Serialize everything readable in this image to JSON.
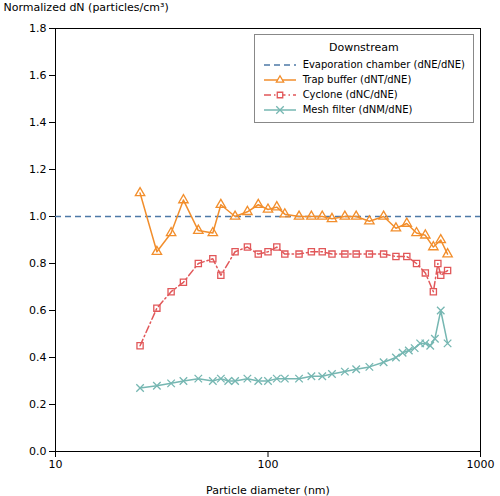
{
  "chart_data": {
    "type": "line",
    "xlabel": "Particle diameter (nm)",
    "ylabel": "Normalized dN (particles/cm³)",
    "log": "x",
    "xlim": [
      10,
      1000
    ],
    "xticks": [
      10,
      100,
      1000
    ],
    "ylim": [
      0.0,
      1.8
    ],
    "yticks": [
      {
        "value": 0.0,
        "label": "0.0"
      },
      0.2,
      0.4,
      0.6,
      0.8,
      {
        "value": 1.0,
        "label": "1.0"
      },
      1.2,
      1.4,
      1.6,
      1.8
    ],
    "grid": false,
    "legend": "upper right",
    "legend_title": "Downstream",
    "series": [
      {
        "name": "Evaporation chamber (dNE/dNE)",
        "type": "hline",
        "line_style": "dashed",
        "values": [
          1.0
        ]
      },
      {
        "name": "Trap buffer (dNT/dNE)",
        "type": "line",
        "line_style": "solid",
        "marker": "triangle",
        "x": [
          25,
          30,
          35,
          40,
          47,
          55,
          60,
          70,
          80,
          90,
          100,
          110,
          120,
          140,
          160,
          180,
          200,
          230,
          260,
          300,
          350,
          400,
          450,
          500,
          550,
          600,
          650,
          700
        ],
        "values": [
          1.1,
          0.85,
          0.93,
          1.07,
          0.94,
          0.93,
          1.05,
          1.0,
          1.02,
          1.05,
          1.03,
          1.04,
          1.01,
          1.0,
          1.0,
          1.0,
          0.99,
          1.0,
          1.0,
          0.98,
          1.0,
          0.95,
          0.97,
          0.93,
          0.92,
          0.87,
          0.9,
          0.84
        ]
      },
      {
        "name": "Cyclone (dNC/dNE)",
        "type": "line",
        "line_style": "dashdot",
        "marker": "square",
        "x": [
          25,
          30,
          35,
          40,
          47,
          55,
          60,
          70,
          80,
          90,
          100,
          110,
          120,
          140,
          160,
          180,
          200,
          230,
          260,
          300,
          350,
          400,
          450,
          500,
          550,
          600,
          630,
          650,
          700
        ],
        "values": [
          0.45,
          0.61,
          0.68,
          0.72,
          0.8,
          0.82,
          0.75,
          0.85,
          0.87,
          0.84,
          0.85,
          0.87,
          0.84,
          0.84,
          0.85,
          0.85,
          0.84,
          0.84,
          0.84,
          0.84,
          0.84,
          0.83,
          0.83,
          0.8,
          0.76,
          0.68,
          0.8,
          0.75,
          0.77
        ]
      },
      {
        "name": "Mesh filter (dNM/dNE)",
        "type": "line",
        "line_style": "solid",
        "marker": "x",
        "x": [
          25,
          30,
          35,
          40,
          47,
          55,
          60,
          65,
          70,
          80,
          90,
          100,
          110,
          120,
          140,
          160,
          180,
          200,
          230,
          260,
          300,
          350,
          400,
          430,
          460,
          490,
          520,
          550,
          580,
          610,
          650,
          700
        ],
        "values": [
          0.27,
          0.28,
          0.29,
          0.3,
          0.31,
          0.3,
          0.31,
          0.3,
          0.3,
          0.31,
          0.3,
          0.3,
          0.31,
          0.31,
          0.31,
          0.32,
          0.32,
          0.33,
          0.34,
          0.35,
          0.36,
          0.38,
          0.4,
          0.42,
          0.43,
          0.44,
          0.46,
          0.46,
          0.45,
          0.48,
          0.6,
          0.46
        ]
      }
    ]
  }
}
